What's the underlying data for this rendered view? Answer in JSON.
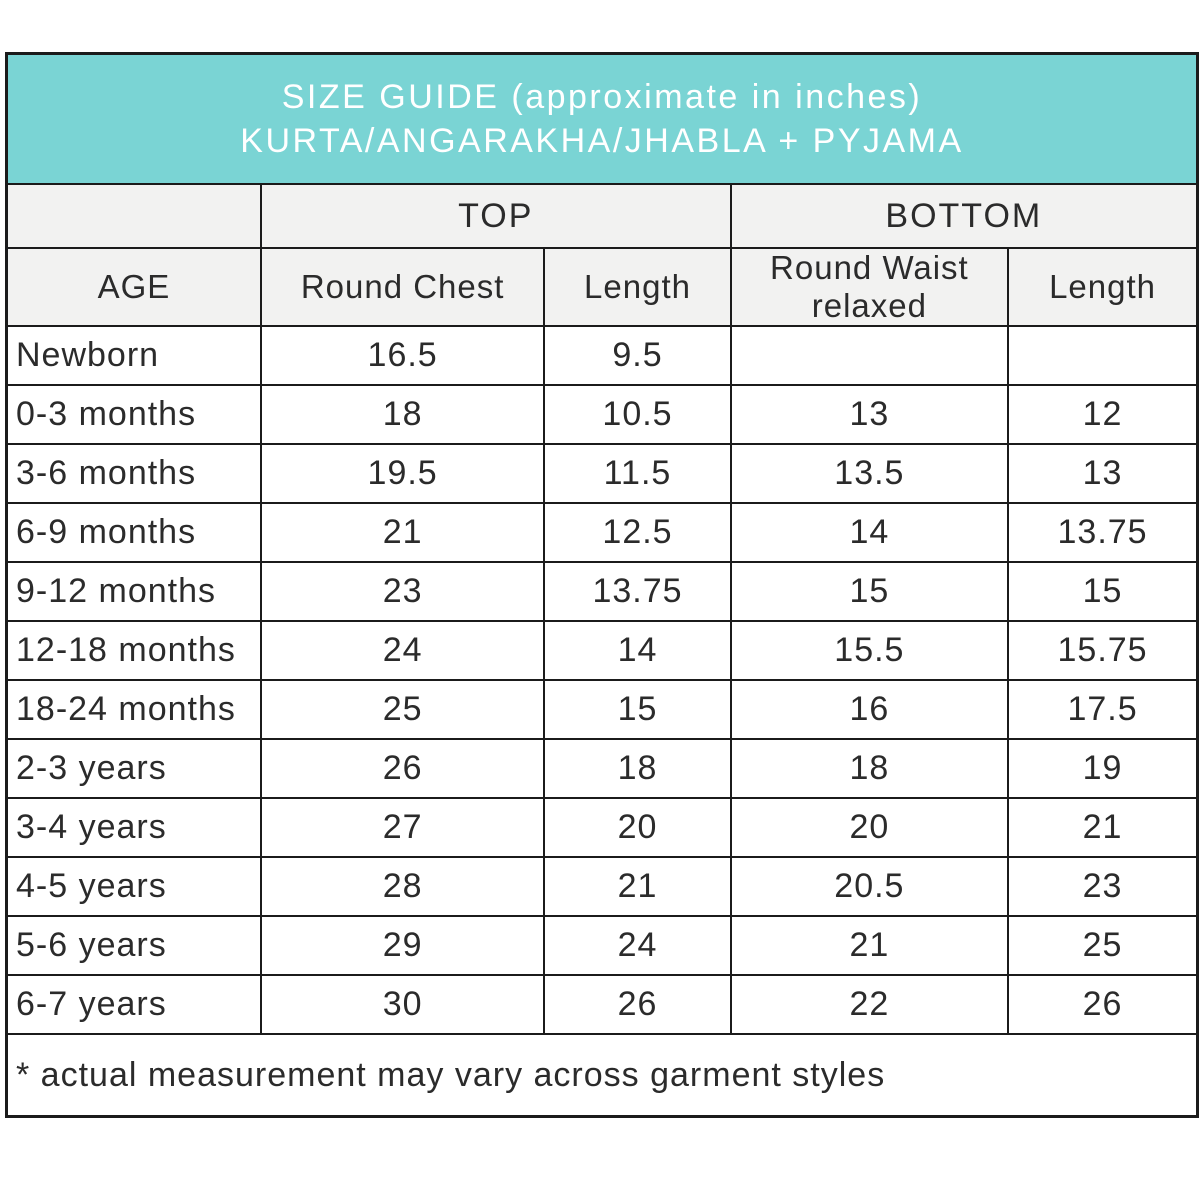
{
  "header": {
    "line1": "SIZE GUIDE (approximate in inches)",
    "line2": "KURTA/ANGARAKHA/JHABLA + PYJAMA"
  },
  "colors": {
    "banner_bg": "#7ad4d4",
    "banner_text": "#ffffff",
    "subheader_bg": "#f2f2f1",
    "border": "#1b1b1b",
    "body_text": "#2b2b2b"
  },
  "chart_data": {
    "type": "table",
    "title": "SIZE GUIDE (approximate in inches)",
    "subtitle": "KURTA/ANGARAKHA/JHABLA + PYJAMA",
    "units": "inches",
    "column_groups": [
      {
        "label": "TOP",
        "columns": [
          "Round Chest",
          "Length"
        ]
      },
      {
        "label": "BOTTOM",
        "columns": [
          "Round Waist relaxed",
          "Length"
        ]
      }
    ],
    "columns": [
      "AGE",
      "Round Chest",
      "Length",
      "Round Waist relaxed",
      "Length"
    ],
    "rows": [
      [
        "Newborn",
        16.5,
        9.5,
        "",
        ""
      ],
      [
        "0-3 months",
        18,
        10.5,
        13,
        12
      ],
      [
        "3-6 months",
        19.5,
        11.5,
        13.5,
        13
      ],
      [
        "6-9 months",
        21,
        12.5,
        14,
        13.75
      ],
      [
        "9-12 months",
        23,
        13.75,
        15,
        15
      ],
      [
        "12-18 months",
        24,
        14,
        15.5,
        15.75
      ],
      [
        "18-24 months",
        25,
        15,
        16,
        17.5
      ],
      [
        "2-3 years",
        26,
        18,
        18,
        19
      ],
      [
        "3-4 years",
        27,
        20,
        20,
        21
      ],
      [
        "4-5 years",
        28,
        21,
        20.5,
        23
      ],
      [
        "5-6 years",
        29,
        24,
        21,
        25
      ],
      [
        "6-7 years",
        30,
        26,
        22,
        26
      ]
    ],
    "footnote": "* actual measurement may vary across garment styles"
  }
}
